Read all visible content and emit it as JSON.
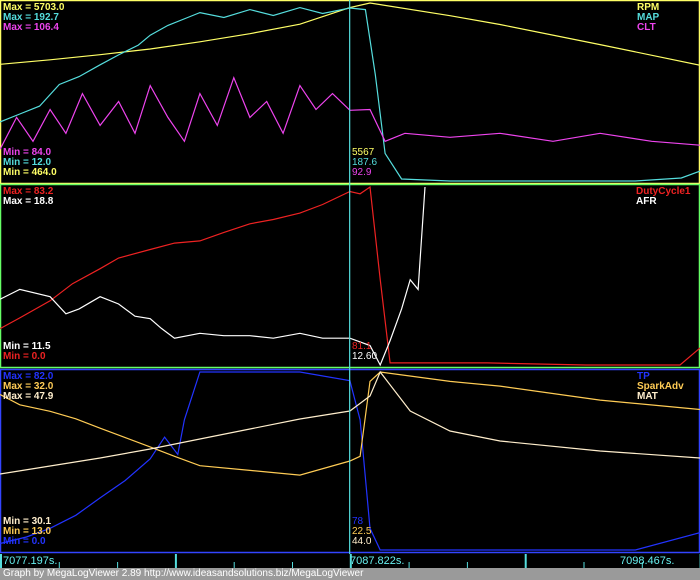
{
  "chart_data": [
    {
      "type": "line",
      "x_unit": "s",
      "xlim": [
        7077.197,
        7098.467
      ],
      "border_color": "#ffff66",
      "series": [
        {
          "name": "RPM",
          "color": "#ffff66",
          "min": 464.0,
          "max": 5703.0,
          "cursor_value": "5567",
          "x": [
            7077.2,
            7078.72,
            7080.24,
            7081.76,
            7083.27,
            7084.79,
            7086.31,
            7087.83,
            7088.44,
            7090.87,
            7092.39,
            7095.43,
            7098.47
          ],
          "y": [
            3900,
            4030,
            4180,
            4350,
            4560,
            4800,
            5080,
            5567,
            5703,
            5330,
            5070,
            4480,
            3870
          ]
        },
        {
          "name": "MAP",
          "color": "#55dddd",
          "min": 12.0,
          "max": 192.7,
          "cursor_value": "187.6",
          "x": [
            7077.2,
            7077.8,
            7078.4,
            7079.0,
            7079.6,
            7080.24,
            7080.8,
            7081.4,
            7081.76,
            7082.3,
            7082.9,
            7083.27,
            7084.0,
            7084.79,
            7085.5,
            7086.31,
            7087.0,
            7087.83,
            7088.3,
            7088.6,
            7088.9,
            7089.4,
            7090.87,
            7094.0,
            7096.5,
            7097.9,
            7098.47
          ],
          "y": [
            72,
            80,
            88,
            110,
            118,
            130,
            140,
            150,
            160,
            170,
            178,
            183,
            178,
            186,
            180,
            188,
            182,
            187.6,
            186,
            120,
            40,
            14,
            12,
            12,
            12,
            15,
            22
          ]
        },
        {
          "name": "CLT",
          "color": "#ee44ee",
          "min": 84.0,
          "max": 106.4,
          "cursor_value": "92.9",
          "x": [
            7077.2,
            7077.7,
            7078.2,
            7078.72,
            7079.2,
            7079.7,
            7080.24,
            7080.8,
            7081.3,
            7081.76,
            7082.3,
            7082.8,
            7083.27,
            7083.8,
            7084.3,
            7084.79,
            7085.3,
            7085.8,
            7086.31,
            7086.8,
            7087.3,
            7087.83,
            7088.44,
            7088.9,
            7089.5,
            7090.87,
            7092.39,
            7094.0,
            7095.43,
            7097.0,
            7098.47
          ],
          "y": [
            88,
            92,
            89,
            93,
            90,
            95,
            91,
            94,
            90,
            96,
            92,
            89,
            95,
            91,
            97,
            92,
            94,
            90,
            96,
            93,
            95,
            92.9,
            93,
            89,
            90,
            89.5,
            90,
            89,
            90,
            89,
            88.5
          ]
        }
      ],
      "max_labels": [
        "Max = 5703.0",
        "Max = 192.7",
        "Max = 106.4"
      ],
      "min_labels": [
        "Min = 84.0",
        "Min = 12.0",
        "Min = 464.0"
      ]
    },
    {
      "type": "line",
      "x_unit": "s",
      "xlim": [
        7077.197,
        7098.467
      ],
      "border_color": "#66ff66",
      "series": [
        {
          "name": "DutyCycle1",
          "color": "#ee2222",
          "min": 0.0,
          "max": 83.2,
          "cursor_value": "81.1",
          "x": [
            7077.2,
            7077.8,
            7078.72,
            7079.4,
            7080.24,
            7080.8,
            7081.76,
            7082.5,
            7083.27,
            7084.0,
            7084.79,
            7085.5,
            7086.31,
            7087.0,
            7087.83,
            7088.14,
            7088.44,
            7088.75,
            7089.05,
            7092.0,
            7095.0,
            7097.86,
            7098.47
          ],
          "y": [
            17,
            22,
            30,
            38,
            45,
            50,
            54,
            57,
            58,
            62,
            66,
            68,
            71,
            75,
            81.1,
            80,
            83.2,
            40,
            1,
            1,
            0,
            0,
            8
          ]
        },
        {
          "name": "AFR",
          "color": "#ffffff",
          "min": 11.5,
          "max": 18.8,
          "cursor_value": "12.60",
          "x": [
            7077.2,
            7077.8,
            7078.72,
            7079.2,
            7079.6,
            7080.24,
            7080.8,
            7081.3,
            7081.76,
            7082.1,
            7082.5,
            7083.27,
            7084.0,
            7084.79,
            7085.5,
            7086.31,
            7087.0,
            7087.83,
            7088.44,
            7088.75,
            7089.05,
            7089.4,
            7089.66,
            7089.9,
            7090.11
          ],
          "y": [
            14.2,
            14.6,
            14.3,
            13.6,
            13.8,
            14.3,
            14.0,
            13.5,
            13.4,
            13.0,
            12.6,
            12.8,
            12.7,
            12.7,
            12.6,
            12.8,
            12.6,
            12.6,
            12.3,
            11.5,
            12.5,
            13.8,
            15.0,
            14.6,
            18.8
          ]
        }
      ],
      "max_labels": [
        "Max = 83.2",
        "Max = 18.8"
      ],
      "min_labels": [
        "Min = 11.5",
        "Min = 0.0"
      ]
    },
    {
      "type": "line",
      "x_unit": "s",
      "xlim": [
        7077.197,
        7098.467
      ],
      "border_color": "#3344ff",
      "series": [
        {
          "name": "TP",
          "color": "#2233ff",
          "min": 0.0,
          "max": 82.0,
          "cursor_value": "78",
          "x": [
            7077.2,
            7078.0,
            7078.72,
            7079.5,
            7080.24,
            7081.0,
            7081.76,
            7082.2,
            7082.6,
            7082.8,
            7083.27,
            7084.79,
            7086.31,
            7087.83,
            7088.14,
            7088.44,
            7088.75,
            7092.0,
            7096.5,
            7098.47
          ],
          "y": [
            3,
            6,
            10,
            16,
            24,
            32,
            42,
            52,
            44,
            60,
            82,
            82,
            82,
            78,
            60,
            10,
            0,
            0,
            0,
            8
          ]
        },
        {
          "name": "SparkAdv",
          "color": "#ffcc55",
          "min": 13.0,
          "max": 32.0,
          "cursor_value": "22.5",
          "x": [
            7077.2,
            7077.8,
            7078.72,
            7079.5,
            7080.24,
            7081.0,
            7081.76,
            7082.5,
            7083.27,
            7084.79,
            7086.31,
            7087.83,
            7088.14,
            7088.44,
            7088.75,
            7090.87,
            7092.39,
            7095.43,
            7098.47
          ],
          "y": [
            29.6,
            28.5,
            27.8,
            27,
            26,
            25,
            24,
            23,
            22,
            21.5,
            21,
            22.5,
            23,
            31,
            32,
            31,
            30.5,
            29,
            28
          ]
        },
        {
          "name": "MAT",
          "color": "#ffeecc",
          "min": 30.1,
          "max": 47.9,
          "cursor_value": "44.0",
          "x": [
            7077.2,
            7078.72,
            7080.24,
            7081.76,
            7083.27,
            7084.79,
            7086.31,
            7087.83,
            7088.44,
            7088.75,
            7089.66,
            7090.87,
            7092.39,
            7095.43,
            7098.47
          ],
          "y": [
            37.7,
            38.5,
            39.3,
            40.2,
            41.2,
            42.2,
            43.2,
            44.0,
            45.5,
            47.9,
            44,
            42,
            41,
            40,
            39.3
          ]
        }
      ],
      "max_labels": [
        "Max = 82.0",
        "Max = 32.0",
        "Max = 47.9"
      ],
      "min_labels": [
        "Min = 30.1",
        "Min = 13.0",
        "Min = 0.0"
      ]
    }
  ],
  "cursor_time": 7087.822,
  "time_axis": {
    "start_label": "7077.197s.",
    "cursor_label": "7087.822s.",
    "end_label": "7098.467s."
  },
  "footer": "Graph by MegaLogViewer 2.89 http://www.ideasandsolutions.biz/MegaLogViewer"
}
